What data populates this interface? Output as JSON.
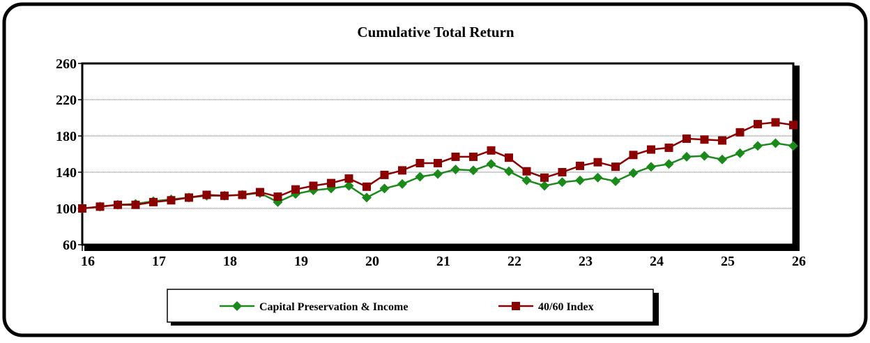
{
  "chart_data": {
    "type": "line",
    "title": "Cumulative Total Return",
    "x": [
      16,
      16.25,
      16.5,
      16.75,
      17,
      17.25,
      17.5,
      17.75,
      18,
      18.25,
      18.5,
      18.75,
      19,
      19.25,
      19.5,
      19.75,
      20,
      20.25,
      20.5,
      20.75,
      21,
      21.25,
      21.5,
      21.75,
      22,
      22.25,
      22.5,
      22.75,
      23,
      23.25,
      23.5,
      23.75,
      24,
      24.25,
      24.5,
      24.75,
      25,
      25.25,
      25.5,
      25.75,
      26
    ],
    "series": [
      {
        "name": "Capital Preservation & Income",
        "color": "#1a8a1a",
        "marker": "diamond",
        "values": [
          100,
          102,
          104,
          105,
          108,
          110,
          112,
          114,
          114,
          115,
          117,
          107,
          116,
          120,
          122,
          125,
          112,
          122,
          127,
          135,
          138,
          143,
          142,
          149,
          141,
          131,
          125,
          129,
          131,
          134,
          130,
          139,
          146,
          149,
          157,
          158,
          154,
          161,
          169,
          172,
          169
        ]
      },
      {
        "name": "40/60 Index",
        "color": "#8b0000",
        "marker": "square",
        "values": [
          100,
          102,
          104,
          104,
          107,
          109,
          112,
          115,
          114,
          115,
          118,
          113,
          121,
          125,
          128,
          133,
          124,
          137,
          142,
          150,
          150,
          157,
          157,
          164,
          156,
          141,
          134,
          140,
          147,
          151,
          146,
          159,
          165,
          167,
          177,
          176,
          175,
          184,
          193,
          195,
          192
        ]
      }
    ],
    "xlim": [
      16,
      26
    ],
    "xticks": [
      16,
      17,
      18,
      19,
      20,
      21,
      22,
      23,
      24,
      25,
      26
    ],
    "ylim": [
      60,
      260
    ],
    "yticks": [
      60,
      100,
      140,
      180,
      220,
      260
    ],
    "grid": true
  }
}
